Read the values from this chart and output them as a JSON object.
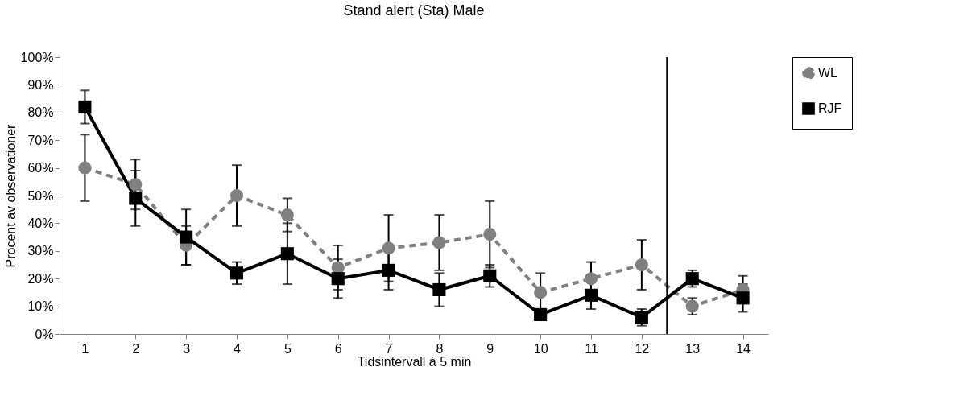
{
  "chart_data": {
    "type": "line",
    "title": "Stand alert (Sta) Male",
    "xlabel": "Tidsintervall á 5 min",
    "ylabel": "Procent av observationer",
    "x": [
      1,
      2,
      3,
      4,
      5,
      6,
      7,
      8,
      9,
      10,
      11,
      12,
      13,
      14
    ],
    "xlim": [
      0.5,
      14.5
    ],
    "xticks": [
      1,
      2,
      3,
      4,
      5,
      6,
      7,
      8,
      9,
      10,
      11,
      12,
      13,
      14
    ],
    "ylim": [
      0,
      100
    ],
    "yticks": [
      {
        "value": 0,
        "label": "0%"
      },
      {
        "value": 10,
        "label": "10%"
      },
      {
        "value": 20,
        "label": "20%"
      },
      {
        "value": 30,
        "label": "30%"
      },
      {
        "value": 40,
        "label": "40%"
      },
      {
        "value": 50,
        "label": "50%"
      },
      {
        "value": 60,
        "label": "60%"
      },
      {
        "value": 70,
        "label": "70%"
      },
      {
        "value": 80,
        "label": "80%"
      },
      {
        "value": 90,
        "label": "90%"
      },
      {
        "value": 100,
        "label": "100%"
      }
    ],
    "grid": false,
    "legend": "right",
    "series": [
      {
        "name": "WL",
        "color": "#808080",
        "marker": "circle",
        "line_style": "dashed",
        "values": [
          60,
          54,
          32,
          50,
          43,
          24,
          31,
          33,
          36,
          15,
          20,
          25,
          10,
          16
        ],
        "errors": [
          12,
          9,
          7,
          11,
          6,
          8,
          12,
          10,
          12,
          7,
          6,
          9,
          3,
          5
        ]
      },
      {
        "name": "RJF",
        "color": "#000000",
        "marker": "square",
        "line_style": "solid",
        "values": [
          82,
          49,
          35,
          22,
          29,
          20,
          23,
          16,
          21,
          7,
          14,
          6,
          20,
          13
        ],
        "errors": [
          6,
          10,
          10,
          4,
          11,
          7,
          7,
          6,
          4,
          1,
          5,
          3,
          3,
          5
        ]
      }
    ],
    "ref_lines": [
      {
        "axis": "x",
        "value": 12.5,
        "color": "#000000"
      }
    ]
  }
}
